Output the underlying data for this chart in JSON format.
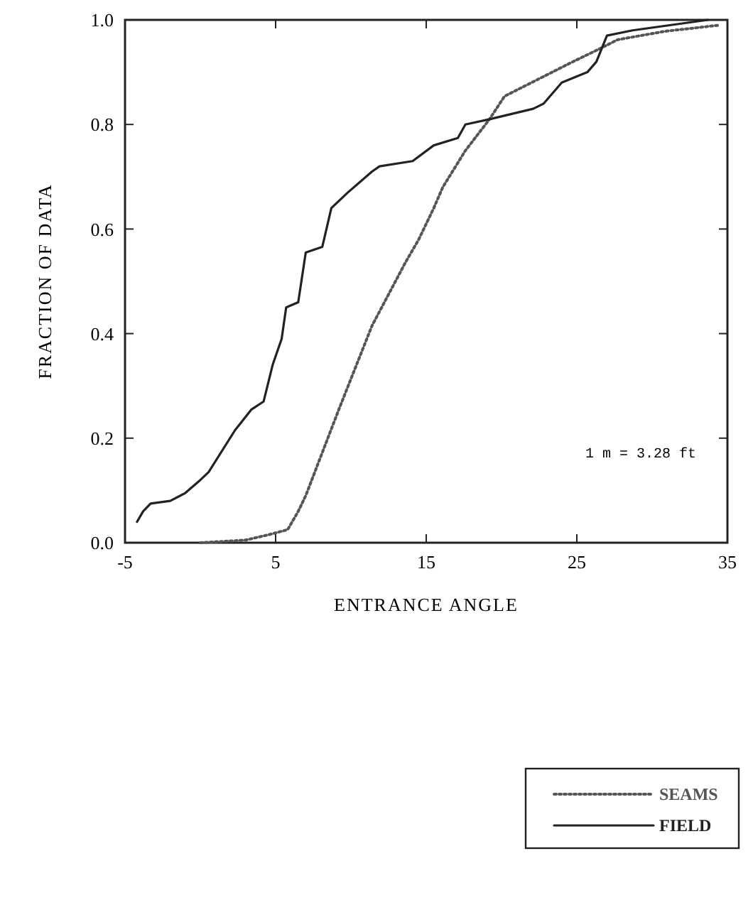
{
  "chart_data": {
    "type": "line",
    "xlabel": "ENTRANCE ANGLE",
    "ylabel": "FRACTION OF DATA",
    "xlim": [
      -5,
      35
    ],
    "ylim": [
      0,
      1
    ],
    "xticks": [
      -5,
      5,
      15,
      25,
      35
    ],
    "yticks": [
      {
        "value": 0,
        "label": "0.0"
      },
      0.2,
      0.4,
      0.6,
      0.8,
      {
        "value": 1,
        "label": "1.0"
      }
    ],
    "legend": "bottom right",
    "grid": false,
    "annotations": [
      "1 m = 3.28 ft"
    ],
    "series": [
      {
        "name": "SEAMS",
        "color": "#555555",
        "line_style": "dotted",
        "x": [
          0,
          3,
          4.5,
          5.8,
          6.5,
          7,
          9.2,
          11.4,
          13.6,
          14.5,
          15.5,
          16.1,
          17.6,
          19.2,
          20.2,
          22.4,
          24.6,
          26.6,
          27.7,
          30.8,
          34.5
        ],
        "values": [
          0,
          0.005,
          0.015,
          0.025,
          0.06,
          0.09,
          0.255,
          0.415,
          0.535,
          0.58,
          0.64,
          0.68,
          0.75,
          0.81,
          0.854,
          0.886,
          0.918,
          0.946,
          0.962,
          0.978,
          0.99
        ]
      },
      {
        "name": "FIELD",
        "color": "#222222",
        "line_style": "solid",
        "x": [
          -4.2,
          -3.8,
          -3.3,
          -2,
          -1,
          0,
          0.55,
          2.3,
          3.4,
          4.2,
          4.8,
          5.4,
          5.7,
          6.5,
          7,
          8.1,
          8.7,
          9.8,
          11.4,
          11.9,
          14.1,
          15.5,
          17.1,
          17.6,
          19.2,
          22.1,
          22.8,
          24,
          25.7,
          26.3,
          27,
          28.7,
          33.7
        ],
        "values": [
          0.04,
          0.06,
          0.075,
          0.08,
          0.095,
          0.12,
          0.135,
          0.215,
          0.255,
          0.27,
          0.34,
          0.39,
          0.45,
          0.46,
          0.555,
          0.566,
          0.64,
          0.67,
          0.71,
          0.72,
          0.73,
          0.76,
          0.774,
          0.8,
          0.81,
          0.83,
          0.84,
          0.88,
          0.9,
          0.92,
          0.97,
          0.98,
          1.0
        ]
      }
    ]
  }
}
